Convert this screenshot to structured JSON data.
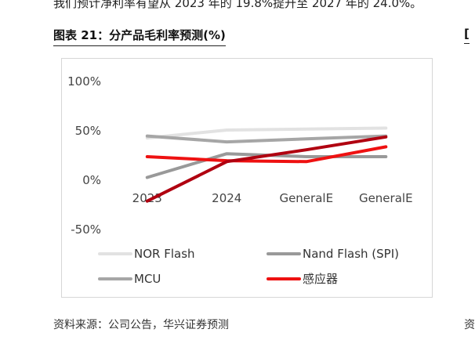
{
  "page": {
    "top_text": "我们预计净利率有望从 2023 年的 19.8%提升至 2027 年的 24.0%。",
    "figure_title": "图表 21：分产品毛利率预测(%)",
    "source": "资料来源：公司公告，华兴证券预测",
    "right_edge_mark": "[",
    "right_edge_mark_bottom": "资"
  },
  "chart_data": {
    "type": "line",
    "title": "",
    "xlabel": "",
    "ylabel": "",
    "categories": [
      "2023",
      "2024",
      "GeneralE",
      "GeneralE"
    ],
    "ylim": [
      -50,
      100
    ],
    "yticks": [
      -50,
      0,
      50,
      100
    ],
    "ytick_labels": [
      "-50%",
      "0%",
      "50%",
      "100%"
    ],
    "grid": false,
    "legend_position": "bottom",
    "series": [
      {
        "name": "NOR Flash",
        "color": "#e2e2e2",
        "values": [
          42,
          50,
          51,
          52
        ]
      },
      {
        "name": "Nand Flash (SPI)",
        "color": "#999999",
        "values": [
          2,
          26,
          23,
          23
        ]
      },
      {
        "name": "MCU",
        "color": "#a6a6a6",
        "values": [
          44,
          38,
          41,
          44
        ]
      },
      {
        "name": "感应器",
        "color": "#ee1111",
        "values": [
          23,
          19,
          18,
          33
        ]
      },
      {
        "name": "",
        "color": "#b00010",
        "values": [
          -22,
          18,
          30,
          43
        ]
      }
    ]
  }
}
